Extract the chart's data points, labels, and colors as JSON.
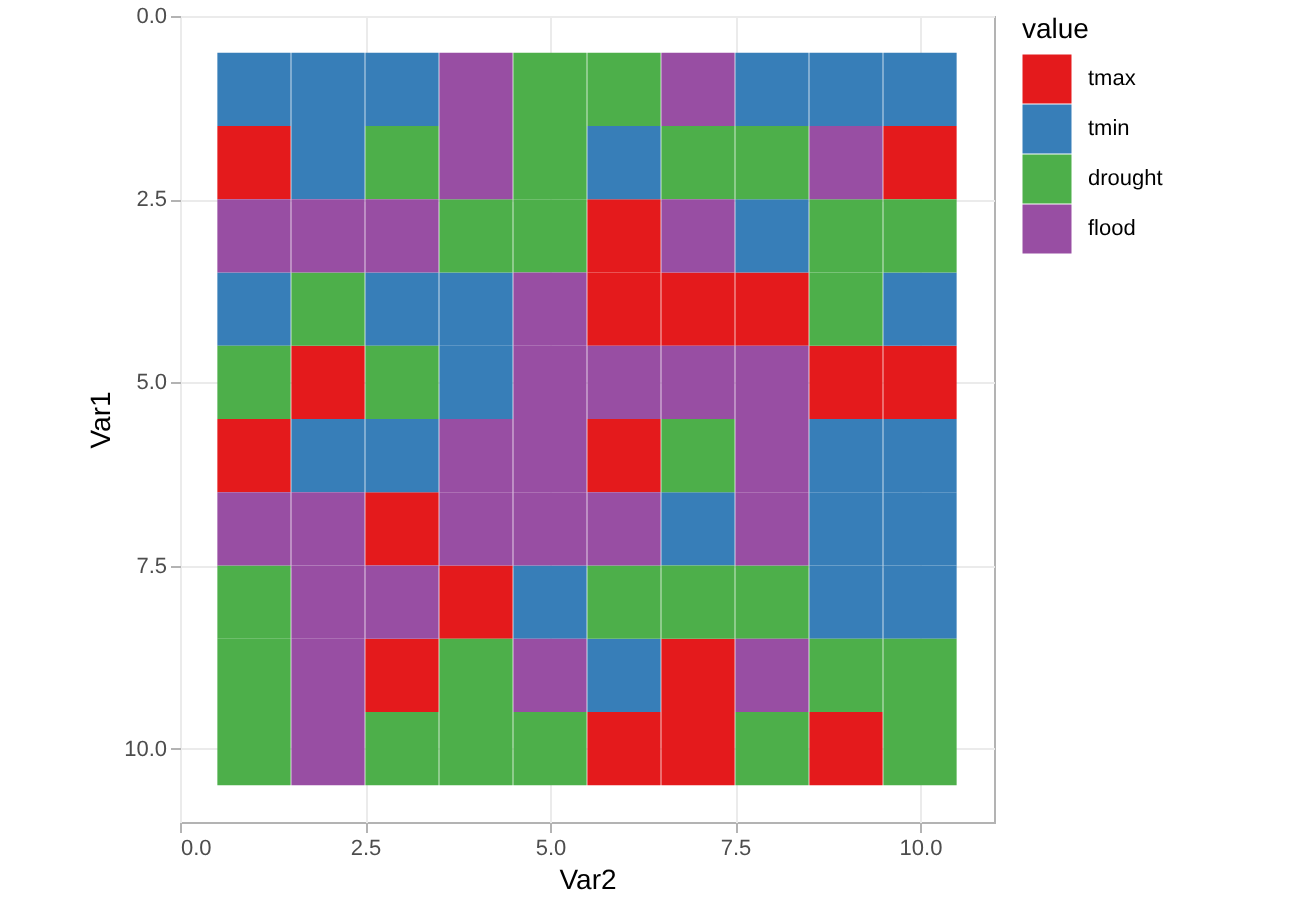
{
  "chart_data": {
    "type": "scatter",
    "marker": "square",
    "xlabel": "Var2",
    "ylabel": "Var1",
    "legend_title": "value",
    "legend": "right",
    "grid": true,
    "xlim": [
      0,
      11
    ],
    "ylim": [
      11,
      0
    ],
    "xticks": [
      {
        "value": 0,
        "label": "0.0"
      },
      {
        "value": 2.5,
        "label": "2.5"
      },
      {
        "value": 5,
        "label": "5.0"
      },
      {
        "value": 7.5,
        "label": "7.5"
      },
      {
        "value": 10,
        "label": "10.0"
      }
    ],
    "yticks": [
      {
        "value": 0,
        "label": "0.0"
      },
      {
        "value": 2.5,
        "label": "2.5"
      },
      {
        "value": 5,
        "label": "5.0"
      },
      {
        "value": 7.5,
        "label": "7.5"
      },
      {
        "value": 10,
        "label": "10.0"
      }
    ],
    "series": [
      {
        "name": "tmax",
        "color": "#e41a1c",
        "x": [
          1,
          10,
          6,
          6,
          7,
          8,
          2,
          9,
          10,
          1,
          6,
          3,
          4,
          3,
          7,
          6,
          7,
          9
        ],
        "values": [
          2,
          2,
          3,
          4,
          4,
          4,
          5,
          5,
          5,
          6,
          6,
          7,
          8,
          9,
          9,
          10,
          10,
          10
        ]
      },
      {
        "name": "tmin",
        "color": "#377eb8",
        "x": [
          1,
          2,
          3,
          8,
          9,
          10,
          2,
          6,
          8,
          1,
          3,
          4,
          10,
          4,
          2,
          3,
          9,
          10,
          7,
          9,
          10,
          5,
          9,
          10,
          6
        ],
        "values": [
          1,
          1,
          1,
          1,
          1,
          1,
          2,
          2,
          3,
          4,
          4,
          4,
          4,
          5,
          6,
          6,
          6,
          6,
          7,
          7,
          7,
          8,
          8,
          8,
          9
        ]
      },
      {
        "name": "drought",
        "color": "#4daf4a",
        "x": [
          5,
          6,
          3,
          5,
          7,
          8,
          4,
          5,
          9,
          10,
          2,
          9,
          1,
          3,
          7,
          1,
          6,
          7,
          8,
          1,
          4,
          9,
          10,
          1,
          3,
          4,
          5,
          8,
          10
        ],
        "values": [
          1,
          1,
          2,
          2,
          2,
          2,
          3,
          3,
          3,
          3,
          4,
          4,
          5,
          5,
          6,
          8,
          8,
          8,
          8,
          9,
          9,
          9,
          9,
          10,
          10,
          10,
          10,
          10,
          10
        ]
      },
      {
        "name": "flood",
        "color": "#984ea3",
        "x": [
          4,
          7,
          4,
          9,
          1,
          2,
          3,
          7,
          5,
          5,
          6,
          7,
          8,
          4,
          5,
          8,
          1,
          2,
          4,
          5,
          6,
          8,
          2,
          3,
          2,
          5,
          8,
          2
        ],
        "values": [
          1,
          1,
          2,
          2,
          3,
          3,
          3,
          3,
          4,
          5,
          5,
          5,
          5,
          6,
          6,
          6,
          7,
          7,
          7,
          7,
          7,
          7,
          8,
          8,
          9,
          9,
          9,
          10
        ]
      }
    ]
  }
}
